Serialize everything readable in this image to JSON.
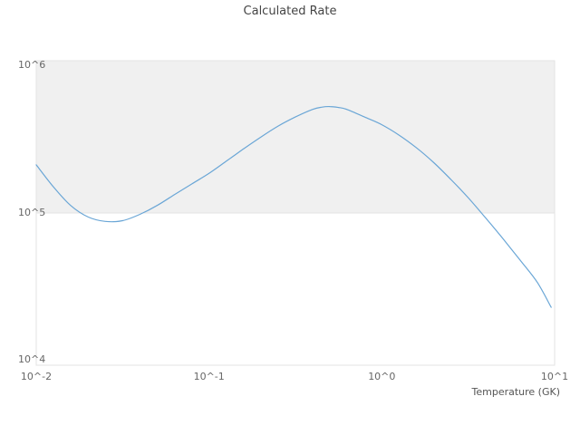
{
  "page": {
    "background": "#ffffff"
  },
  "chart_data": {
    "type": "line",
    "title": "Calculated Rate",
    "xlabel": "Temperature (GK)",
    "ylabel": "",
    "x_scale": "log",
    "y_scale": "log",
    "xlim": [
      0.01,
      10
    ],
    "ylim": [
      10000,
      1000000
    ],
    "grid": "horizontal-band",
    "legend": "none",
    "shaded_band_y": [
      100000,
      1000000
    ],
    "x_ticks": [
      {
        "value": 0.01,
        "label": "10^-2"
      },
      {
        "value": 0.1,
        "label": "10^-1"
      },
      {
        "value": 1,
        "label": "10^0"
      },
      {
        "value": 10,
        "label": "10^1"
      }
    ],
    "y_ticks": [
      {
        "value": 10000,
        "label": "10^4"
      },
      {
        "value": 100000,
        "label": "10^5"
      },
      {
        "value": 1000000,
        "label": "10^6"
      }
    ],
    "colors": {
      "line": "#6aa6d6",
      "band": "#f0f0f0",
      "axis": "#e3e3e3",
      "title_text": "#444444",
      "tick_text": "#666666",
      "axis_label_text": "#555555"
    },
    "series": [
      {
        "name": "Calculated Rate",
        "x": [
          0.01,
          0.0126,
          0.0158,
          0.02,
          0.0251,
          0.0316,
          0.0398,
          0.0501,
          0.0631,
          0.0794,
          0.1,
          0.126,
          0.158,
          0.2,
          0.251,
          0.316,
          0.398,
          0.447,
          0.501,
          0.562,
          0.631,
          0.794,
          1.0,
          1.26,
          1.58,
          2.0,
          2.51,
          3.16,
          3.98,
          5.01,
          6.31,
          7.94,
          9.55
        ],
        "y": [
          207000,
          148000,
          112000,
          94000,
          88000,
          89000,
          98000,
          112000,
          132000,
          155000,
          182000,
          219000,
          263000,
          316000,
          372000,
          427000,
          479000,
          495000,
          500000,
          493000,
          478000,
          427000,
          380000,
          324000,
          269000,
          214000,
          166000,
          126000,
          93000,
          68000,
          49000,
          35000,
          24000
        ]
      }
    ]
  }
}
